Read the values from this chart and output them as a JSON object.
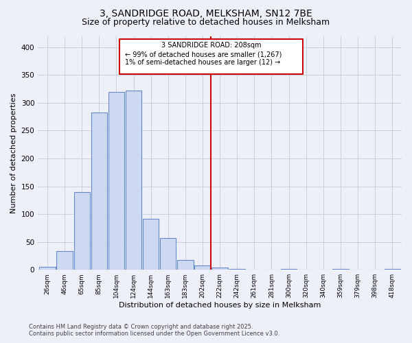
{
  "title_line1": "3, SANDRIDGE ROAD, MELKSHAM, SN12 7BE",
  "title_line2": "Size of property relative to detached houses in Melksham",
  "xlabel": "Distribution of detached houses by size in Melksham",
  "ylabel": "Number of detached properties",
  "bar_labels": [
    "26sqm",
    "46sqm",
    "65sqm",
    "85sqm",
    "104sqm",
    "124sqm",
    "144sqm",
    "163sqm",
    "183sqm",
    "202sqm",
    "222sqm",
    "242sqm",
    "261sqm",
    "281sqm",
    "300sqm",
    "320sqm",
    "340sqm",
    "359sqm",
    "379sqm",
    "398sqm",
    "418sqm"
  ],
  "bar_values": [
    5,
    33,
    140,
    283,
    320,
    322,
    92,
    57,
    18,
    8,
    4,
    2,
    0,
    0,
    2,
    0,
    0,
    1,
    0,
    0,
    2
  ],
  "bar_color": "#ccd9f0",
  "bar_edge_color": "#6688cc",
  "annotation_text_line1": "3 SANDRIDGE ROAD: 208sqm",
  "annotation_text_line2": "← 99% of detached houses are smaller (1,267)",
  "annotation_text_line3": "1% of semi-detached houses are larger (12) →",
  "annotation_box_facecolor": "#ffffff",
  "annotation_box_edgecolor": "#cc0000",
  "vline_color": "#cc0000",
  "grid_color": "#c8cfe0",
  "background_color": "#edf0f8",
  "footer_line1": "Contains HM Land Registry data © Crown copyright and database right 2025.",
  "footer_line2": "Contains public sector information licensed under the Open Government Licence v3.0.",
  "ylim": [
    0,
    420
  ],
  "yticks": [
    0,
    50,
    100,
    150,
    200,
    250,
    300,
    350,
    400
  ],
  "title_fontsize": 10,
  "subtitle_fontsize": 9,
  "axis_label_fontsize": 8,
  "tick_fontsize": 7.5,
  "xtick_fontsize": 6.5,
  "annotation_fontsize": 7,
  "footer_fontsize": 6
}
